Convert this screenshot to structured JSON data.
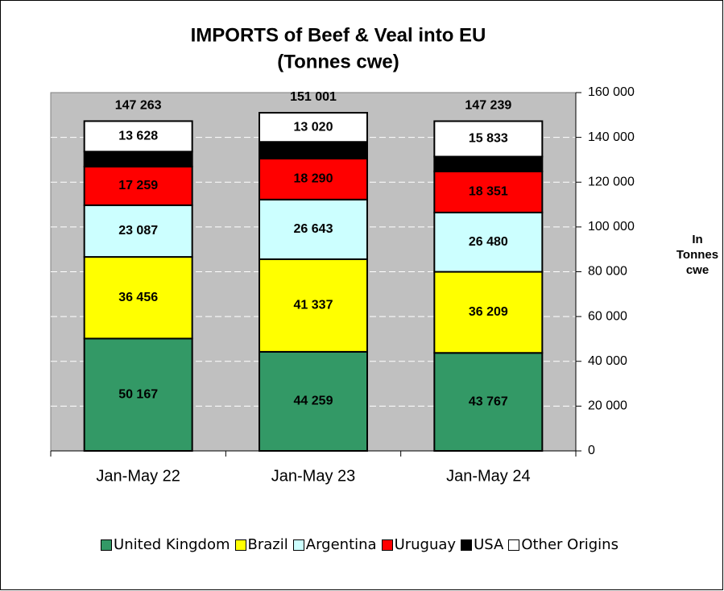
{
  "chart_data": {
    "type": "stacked_bar",
    "title": "IMPORTS of Beef & Veal into EU",
    "subtitle": "(Tonnes cwe)",
    "y_label": "In Tonnes cwe",
    "categories": [
      "Jan-May 22",
      "Jan-May 23",
      "Jan-May 24"
    ],
    "series": [
      {
        "name": "United Kingdom",
        "color": "#339966",
        "values": [
          50167,
          44259,
          43767
        ],
        "value_labels": [
          "50 167",
          "44 259",
          "43 767"
        ]
      },
      {
        "name": "Brazil",
        "color": "#ffff00",
        "values": [
          36456,
          41337,
          36209
        ],
        "value_labels": [
          "36 456",
          "41 337",
          "36 209"
        ]
      },
      {
        "name": "Argentina",
        "color": "#ccffff",
        "values": [
          23087,
          26643,
          26480
        ],
        "value_labels": [
          "23 087",
          "26 643",
          "26 480"
        ]
      },
      {
        "name": "Uruguay",
        "color": "#ff0000",
        "values": [
          17259,
          18290,
          18351
        ],
        "value_labels": [
          "17 259",
          "18 290",
          "18 351"
        ]
      },
      {
        "name": "USA",
        "color": "#000000",
        "values": [
          6666,
          7452,
          6599
        ]
      },
      {
        "name": "Other Origins",
        "color": "#ffffff",
        "values": [
          13628,
          13020,
          15833
        ],
        "value_labels": [
          "13 628",
          "13 020",
          "15 833"
        ]
      }
    ],
    "totals": [
      147263,
      151001,
      147239
    ],
    "total_labels": [
      "147 263",
      "151 001",
      "147 239"
    ],
    "ylim": [
      0,
      160000
    ],
    "yticks": [
      0,
      {
        "value": 20000,
        "label": "20 000"
      },
      {
        "value": 40000,
        "label": "40 000"
      },
      {
        "value": 60000,
        "label": "60 000"
      },
      {
        "value": 80000,
        "label": "80 000"
      },
      {
        "value": 100000,
        "label": "100 000"
      },
      {
        "value": 120000,
        "label": "120 000"
      },
      {
        "value": 140000,
        "label": "140 000"
      },
      {
        "value": 160000,
        "label": "160 000"
      }
    ],
    "grid": true,
    "plot_background": "#c0c0c0",
    "legend": "bottom"
  }
}
